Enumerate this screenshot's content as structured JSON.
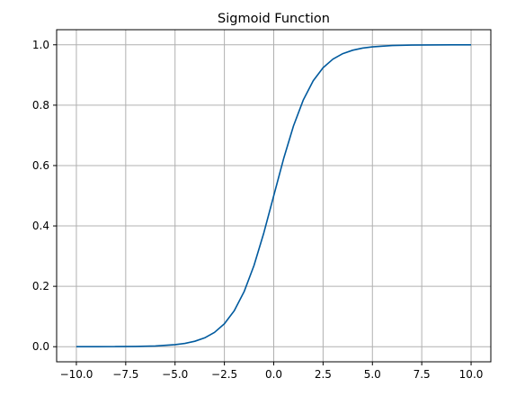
{
  "chart_data": {
    "type": "line",
    "title": "Sigmoid Function",
    "xlabel": "",
    "ylabel": "",
    "xlim": [
      -11.0,
      11.0
    ],
    "ylim": [
      -0.05,
      1.05
    ],
    "xticks": [
      -10.0,
      -7.5,
      -5.0,
      -2.5,
      0.0,
      2.5,
      5.0,
      7.5,
      10.0
    ],
    "xtick_labels": [
      "−10.0",
      "−7.5",
      "−5.0",
      "−2.5",
      "0.0",
      "2.5",
      "5.0",
      "7.5",
      "10.0"
    ],
    "yticks": [
      0.0,
      0.2,
      0.4,
      0.6,
      0.8,
      1.0
    ],
    "ytick_labels": [
      "0.0",
      "0.2",
      "0.4",
      "0.6",
      "0.8",
      "1.0"
    ],
    "grid": true,
    "series": [
      {
        "color": "#005a9e",
        "x": [
          -10,
          -9,
          -8,
          -7,
          -6,
          -5,
          -4.5,
          -4,
          -3.5,
          -3,
          -2.5,
          -2,
          -1.5,
          -1,
          -0.5,
          0,
          0.5,
          1,
          1.5,
          2,
          2.5,
          3,
          3.5,
          4,
          4.5,
          5,
          6,
          7,
          8,
          9,
          10
        ],
        "y": [
          4.54e-05,
          0.000123,
          0.000335,
          0.000911,
          0.00247,
          0.00669,
          0.011,
          0.018,
          0.0293,
          0.0474,
          0.0759,
          0.1192,
          0.1824,
          0.2689,
          0.3775,
          0.5,
          0.6225,
          0.7311,
          0.8176,
          0.8808,
          0.9241,
          0.9526,
          0.9707,
          0.982,
          0.989,
          0.99331,
          0.99753,
          0.99909,
          0.99966,
          0.99988,
          0.99995
        ]
      }
    ]
  }
}
